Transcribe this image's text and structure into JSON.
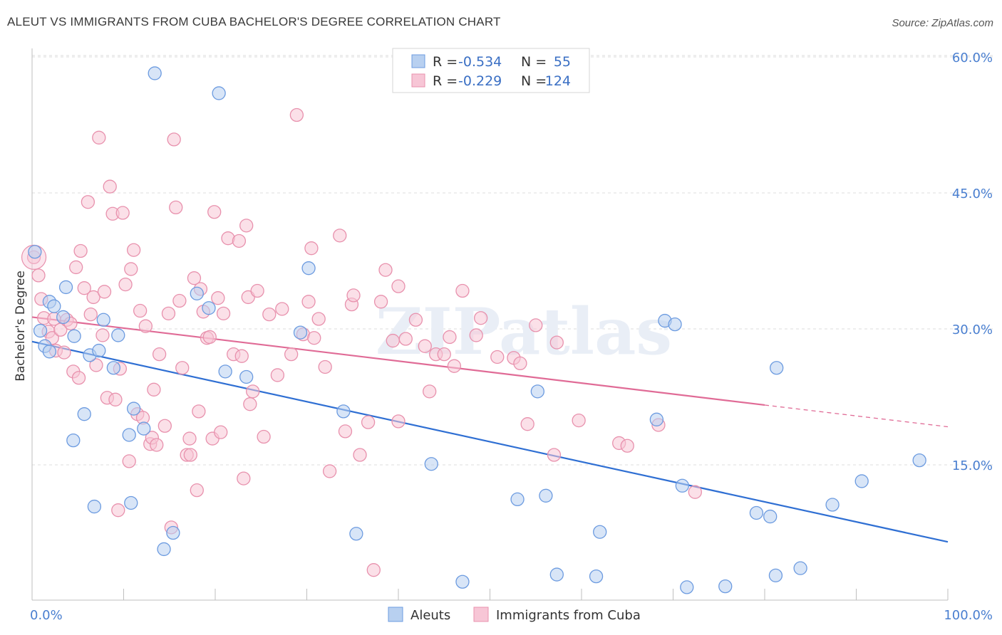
{
  "title": "ALEUT VS IMMIGRANTS FROM CUBA BACHELOR'S DEGREE CORRELATION CHART",
  "source": "Source: ZipAtlas.com",
  "watermark": "ZIPatlas",
  "colors": {
    "blue_fill": "#b8d0f0",
    "blue_stroke": "#6c9be0",
    "blue_line": "#2f6fd3",
    "pink_fill": "#f7c6d6",
    "pink_stroke": "#e891ad",
    "pink_line": "#e06b96",
    "grid": "#dcdcdc",
    "axis_text": "#4a7fd0"
  },
  "legend_top": {
    "rows": [
      {
        "r_label": "R =",
        "r_value": "-0.534",
        "n_label": "N =",
        "n_value": "55",
        "series": "Aleuts"
      },
      {
        "r_label": "R =",
        "r_value": "-0.229",
        "n_label": "N =",
        "n_value": "124",
        "series": "Immigrants from Cuba"
      }
    ]
  },
  "legend_bottom": [
    "Aleuts",
    "Immigrants from Cuba"
  ],
  "chart_data": {
    "type": "scatter",
    "title": "ALEUT VS IMMIGRANTS FROM CUBA BACHELOR'S DEGREE CORRELATION CHART",
    "xlabel": "",
    "ylabel": "Bachelor's Degree",
    "xlim": [
      0,
      100
    ],
    "ylim": [
      0,
      63
    ],
    "x_tick_labels": [
      "0.0%",
      "100.0%"
    ],
    "y_ticks": [
      15,
      30,
      45,
      60
    ],
    "y_tick_labels": [
      "15.0%",
      "30.0%",
      "45.0%",
      "60.0%"
    ],
    "grid": true,
    "legend_placement": "top-center",
    "series": [
      {
        "name": "Aleuts",
        "r": -0.534,
        "n": 55,
        "trend": {
          "x": [
            0,
            100
          ],
          "y": [
            28.6,
            6.5
          ]
        },
        "points": [
          [
            0.3,
            38.5
          ],
          [
            0.9,
            29.8
          ],
          [
            1.4,
            28.1
          ],
          [
            1.9,
            27.5
          ],
          [
            1.9,
            33.0
          ],
          [
            2.4,
            32.5
          ],
          [
            3.4,
            31.3
          ],
          [
            3.7,
            34.6
          ],
          [
            4.6,
            29.2
          ],
          [
            4.5,
            17.7
          ],
          [
            5.7,
            20.6
          ],
          [
            6.3,
            27.1
          ],
          [
            6.8,
            10.4
          ],
          [
            7.3,
            27.6
          ],
          [
            7.8,
            31.0
          ],
          [
            8.9,
            25.7
          ],
          [
            9.4,
            29.3
          ],
          [
            10.6,
            18.3
          ],
          [
            10.8,
            10.8
          ],
          [
            11.1,
            21.2
          ],
          [
            12.2,
            19.0
          ],
          [
            13.4,
            58.2
          ],
          [
            14.4,
            5.7
          ],
          [
            15.4,
            7.5
          ],
          [
            18.0,
            33.9
          ],
          [
            19.3,
            32.3
          ],
          [
            20.4,
            56.0
          ],
          [
            21.1,
            25.3
          ],
          [
            23.4,
            24.7
          ],
          [
            29.3,
            29.6
          ],
          [
            30.2,
            36.7
          ],
          [
            34.0,
            20.9
          ],
          [
            35.4,
            7.4
          ],
          [
            43.6,
            15.1
          ],
          [
            47.0,
            2.1
          ],
          [
            53.0,
            11.2
          ],
          [
            55.2,
            23.1
          ],
          [
            56.1,
            11.6
          ],
          [
            57.3,
            2.9
          ],
          [
            61.6,
            2.7
          ],
          [
            62.0,
            7.6
          ],
          [
            68.2,
            20.0
          ],
          [
            69.1,
            30.9
          ],
          [
            70.2,
            30.5
          ],
          [
            71.0,
            12.7
          ],
          [
            71.5,
            1.5
          ],
          [
            75.7,
            1.6
          ],
          [
            79.1,
            9.7
          ],
          [
            80.6,
            9.3
          ],
          [
            81.2,
            2.8
          ],
          [
            81.3,
            25.7
          ],
          [
            83.9,
            3.6
          ],
          [
            87.4,
            10.6
          ],
          [
            90.6,
            13.2
          ],
          [
            96.9,
            15.5
          ]
        ]
      },
      {
        "name": "Immigrants from Cuba",
        "r": -0.229,
        "n": 124,
        "trend": {
          "x": [
            0,
            80
          ],
          "y": [
            31.3,
            21.6
          ]
        },
        "trend_dashed": {
          "x": [
            80,
            100
          ],
          "y": [
            21.6,
            19.2
          ]
        },
        "points": [
          [
            0.2,
            37.9
          ],
          [
            0.7,
            35.9
          ],
          [
            1.0,
            33.3
          ],
          [
            1.3,
            31.2
          ],
          [
            1.8,
            29.7
          ],
          [
            2.2,
            29.0
          ],
          [
            2.4,
            31.1
          ],
          [
            2.6,
            27.6
          ],
          [
            3.1,
            29.9
          ],
          [
            3.5,
            27.4
          ],
          [
            3.8,
            31.0
          ],
          [
            4.2,
            30.6
          ],
          [
            4.5,
            25.3
          ],
          [
            4.8,
            36.8
          ],
          [
            5.1,
            24.6
          ],
          [
            5.3,
            38.6
          ],
          [
            5.7,
            34.5
          ],
          [
            6.1,
            44.0
          ],
          [
            6.4,
            31.6
          ],
          [
            6.7,
            33.5
          ],
          [
            7.0,
            26.0
          ],
          [
            7.3,
            51.1
          ],
          [
            7.7,
            29.3
          ],
          [
            7.9,
            34.1
          ],
          [
            8.2,
            22.4
          ],
          [
            8.5,
            45.7
          ],
          [
            8.8,
            42.7
          ],
          [
            9.1,
            22.2
          ],
          [
            9.4,
            10.0
          ],
          [
            9.6,
            25.6
          ],
          [
            9.9,
            42.8
          ],
          [
            10.2,
            34.9
          ],
          [
            10.6,
            15.4
          ],
          [
            10.8,
            36.6
          ],
          [
            11.1,
            38.7
          ],
          [
            11.5,
            20.6
          ],
          [
            11.8,
            32.0
          ],
          [
            12.1,
            20.2
          ],
          [
            12.4,
            30.3
          ],
          [
            12.9,
            17.3
          ],
          [
            13.1,
            18.0
          ],
          [
            13.3,
            23.3
          ],
          [
            13.6,
            17.2
          ],
          [
            13.9,
            27.2
          ],
          [
            14.5,
            19.3
          ],
          [
            14.9,
            31.7
          ],
          [
            15.2,
            8.1
          ],
          [
            15.5,
            50.9
          ],
          [
            15.7,
            43.4
          ],
          [
            16.1,
            33.1
          ],
          [
            16.4,
            25.7
          ],
          [
            16.9,
            16.1
          ],
          [
            17.2,
            17.9
          ],
          [
            17.3,
            16.1
          ],
          [
            17.7,
            35.6
          ],
          [
            18.0,
            12.2
          ],
          [
            18.2,
            20.9
          ],
          [
            18.4,
            34.4
          ],
          [
            18.7,
            31.9
          ],
          [
            19.1,
            29.0
          ],
          [
            19.4,
            29.1
          ],
          [
            19.7,
            17.9
          ],
          [
            19.9,
            42.9
          ],
          [
            20.3,
            33.4
          ],
          [
            20.6,
            18.6
          ],
          [
            20.9,
            31.7
          ],
          [
            21.4,
            40.0
          ],
          [
            22.0,
            27.2
          ],
          [
            22.6,
            39.7
          ],
          [
            22.9,
            27.0
          ],
          [
            23.1,
            13.5
          ],
          [
            23.4,
            41.4
          ],
          [
            23.6,
            33.5
          ],
          [
            23.8,
            21.7
          ],
          [
            24.1,
            23.1
          ],
          [
            24.6,
            34.2
          ],
          [
            25.3,
            18.1
          ],
          [
            25.9,
            31.6
          ],
          [
            26.8,
            24.9
          ],
          [
            27.3,
            32.2
          ],
          [
            28.3,
            27.2
          ],
          [
            28.9,
            53.6
          ],
          [
            29.6,
            29.4
          ],
          [
            30.2,
            33.0
          ],
          [
            30.5,
            38.9
          ],
          [
            30.8,
            29.0
          ],
          [
            31.3,
            31.1
          ],
          [
            32.0,
            25.8
          ],
          [
            32.5,
            14.3
          ],
          [
            33.6,
            40.3
          ],
          [
            34.2,
            18.7
          ],
          [
            34.9,
            32.7
          ],
          [
            35.1,
            33.7
          ],
          [
            35.8,
            16.1
          ],
          [
            36.7,
            19.7
          ],
          [
            37.3,
            3.4
          ],
          [
            38.1,
            33.0
          ],
          [
            38.6,
            36.5
          ],
          [
            39.4,
            28.7
          ],
          [
            40.0,
            19.8
          ],
          [
            40.0,
            34.7
          ],
          [
            40.8,
            28.9
          ],
          [
            41.9,
            31.0
          ],
          [
            42.9,
            28.1
          ],
          [
            43.4,
            23.1
          ],
          [
            44.1,
            27.2
          ],
          [
            45.0,
            27.2
          ],
          [
            45.6,
            29.1
          ],
          [
            46.1,
            25.9
          ],
          [
            47.0,
            34.2
          ],
          [
            48.5,
            29.3
          ],
          [
            49.0,
            31.2
          ],
          [
            50.8,
            26.9
          ],
          [
            52.6,
            26.8
          ],
          [
            53.3,
            26.2
          ],
          [
            54.1,
            19.5
          ],
          [
            55.0,
            30.4
          ],
          [
            57.0,
            16.1
          ],
          [
            57.3,
            28.5
          ],
          [
            59.7,
            19.9
          ],
          [
            64.1,
            17.4
          ],
          [
            65.0,
            17.1
          ],
          [
            68.4,
            19.4
          ],
          [
            72.4,
            12.0
          ]
        ]
      }
    ]
  }
}
